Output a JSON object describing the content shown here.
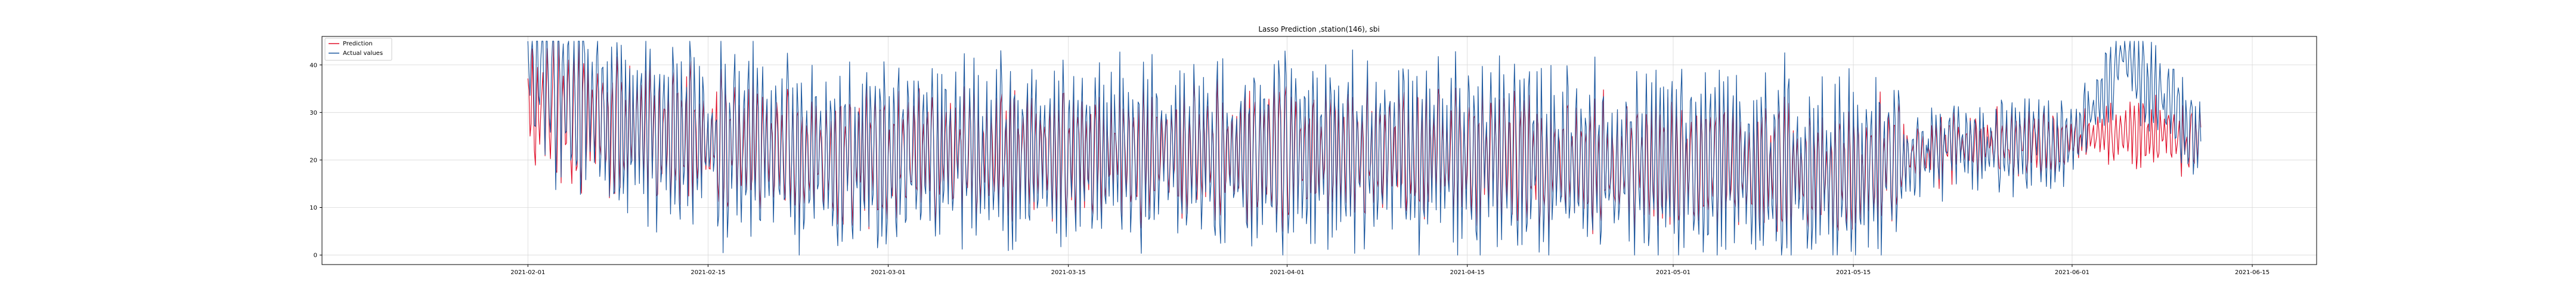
{
  "colors": {
    "prediction": "#e0102a",
    "actual": "#1f5aa0",
    "grid": "#d8d8d8",
    "axes": "#000000"
  },
  "chart_data": {
    "type": "line",
    "title": "Lasso Prediction ,station(146), sbi",
    "xlabel": "",
    "ylabel": "",
    "x_range": [
      "2021-01-16",
      "2021-06-20"
    ],
    "ylim": [
      -2,
      46
    ],
    "grid": true,
    "legend_position": "top-left",
    "x_ticks": [
      "2021-02-01",
      "2021-02-15",
      "2021-03-01",
      "2021-03-15",
      "2021-04-01",
      "2021-04-15",
      "2021-05-01",
      "2021-05-15",
      "2021-06-01",
      "2021-06-15"
    ],
    "y_ticks": [
      0,
      10,
      20,
      30,
      40
    ],
    "data_range": [
      "2021-02-01",
      "2021-06-11"
    ],
    "series": [
      {
        "name": "Prediction",
        "color": "#e0102a",
        "x": [
          "2021-02-01",
          "2021-02-08",
          "2021-02-15",
          "2021-02-22",
          "2021-03-01",
          "2021-03-08",
          "2021-03-15",
          "2021-03-22",
          "2021-04-01",
          "2021-04-08",
          "2021-04-15",
          "2021-04-22",
          "2021-05-01",
          "2021-05-08",
          "2021-05-15",
          "2021-05-22",
          "2021-06-01",
          "2021-06-05",
          "2021-06-11"
        ],
        "y": [
          32,
          27,
          24,
          22,
          21,
          22,
          21,
          22,
          21,
          22,
          21,
          20,
          19,
          18,
          17,
          23,
          24,
          26,
          24
        ]
      },
      {
        "name": "Actual values",
        "color": "#1f5aa0",
        "x": [
          "2021-02-01",
          "2021-02-08",
          "2021-02-15",
          "2021-02-22",
          "2021-03-01",
          "2021-03-08",
          "2021-03-15",
          "2021-03-22",
          "2021-04-01",
          "2021-04-08",
          "2021-04-15",
          "2021-04-22",
          "2021-05-01",
          "2021-05-08",
          "2021-05-15",
          "2021-05-22",
          "2021-06-01",
          "2021-06-05",
          "2021-06-11"
        ],
        "y": [
          42,
          28,
          24,
          22,
          21,
          22,
          21,
          22,
          21,
          22,
          21,
          20,
          19,
          18,
          17,
          23,
          24,
          42,
          24
        ]
      }
    ]
  }
}
